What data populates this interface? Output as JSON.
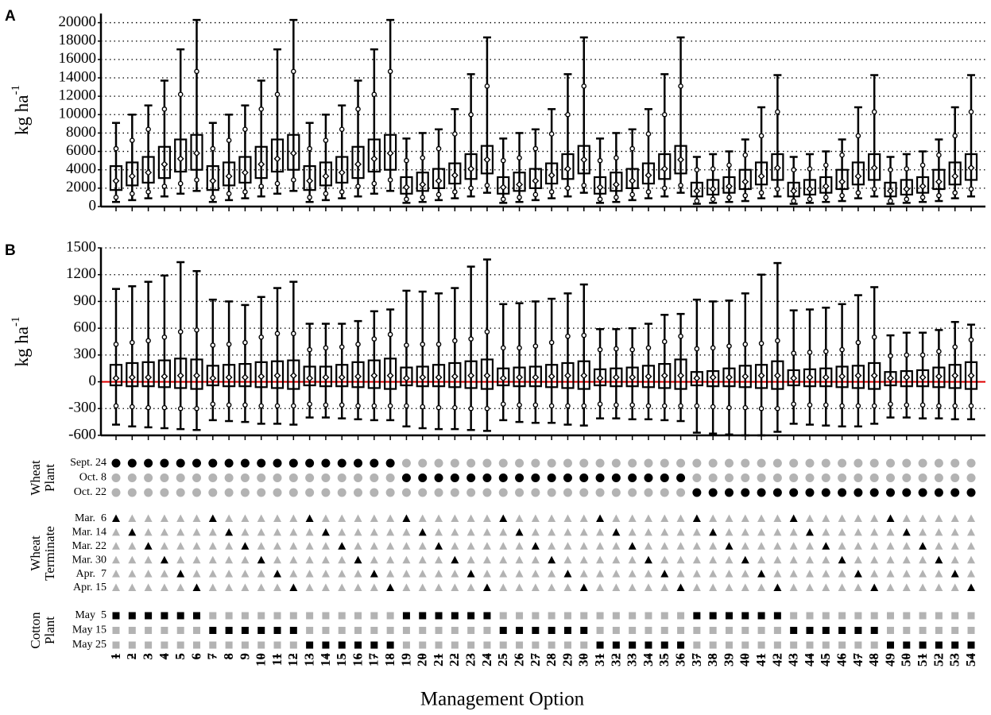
{
  "chart_data": [
    {
      "type": "box",
      "label": "A",
      "y_label": "kg ha",
      "y_label_sup": "-1",
      "ylim": [
        0,
        21000
      ],
      "yticks": [
        0,
        2000,
        4000,
        6000,
        8000,
        10000,
        12000,
        14000,
        16000,
        18000,
        20000
      ],
      "grid": true,
      "stats": {
        "min": [
          500,
          700,
          900,
          1100,
          1400,
          1700,
          500,
          700,
          900,
          1100,
          1400,
          1700,
          500,
          700,
          900,
          1100,
          1400,
          1700,
          400,
          500,
          700,
          900,
          1100,
          1500,
          400,
          500,
          700,
          900,
          1100,
          1500,
          400,
          500,
          700,
          900,
          1100,
          1500,
          300,
          400,
          500,
          600,
          900,
          1100,
          300,
          400,
          500,
          600,
          900,
          1100,
          300,
          400,
          500,
          600,
          900,
          1100
        ],
        "p_low": [
          1000,
          1400,
          1600,
          2200,
          2500,
          2900,
          1000,
          1400,
          1600,
          2200,
          2500,
          2900,
          1000,
          1400,
          1600,
          2200,
          2500,
          2900,
          800,
          1000,
          1300,
          1600,
          2000,
          2300,
          800,
          1000,
          1300,
          1600,
          2000,
          2300,
          800,
          1000,
          1300,
          1600,
          2000,
          2300,
          600,
          800,
          1000,
          1200,
          1500,
          1900,
          600,
          800,
          1000,
          1200,
          1500,
          1900,
          600,
          800,
          1000,
          1200,
          1500,
          1900
        ],
        "q1": [
          1800,
          2300,
          2600,
          3100,
          3800,
          4000,
          1800,
          2300,
          2600,
          3100,
          3800,
          4000,
          1800,
          2300,
          2600,
          3100,
          3800,
          4000,
          1400,
          1700,
          2000,
          2500,
          3000,
          3600,
          1400,
          1700,
          2000,
          2500,
          3000,
          3600,
          1400,
          1700,
          2000,
          2500,
          3000,
          3600,
          1100,
          1300,
          1500,
          1900,
          2400,
          2900,
          1100,
          1300,
          1500,
          1900,
          2400,
          2900,
          1100,
          1300,
          1500,
          1900,
          2400,
          2900
        ],
        "median": [
          2800,
          3300,
          3700,
          4600,
          5200,
          5800,
          2800,
          3300,
          3700,
          4600,
          5200,
          5800,
          2800,
          3300,
          3700,
          4600,
          5200,
          5800,
          2100,
          2400,
          2800,
          3400,
          4100,
          5100,
          2100,
          2400,
          2800,
          3400,
          4100,
          5100,
          2100,
          2400,
          2800,
          3400,
          4100,
          5100,
          1700,
          1900,
          2200,
          2700,
          3300,
          4200,
          1700,
          1900,
          2200,
          2700,
          3300,
          4200,
          1700,
          1900,
          2200,
          2700,
          3300,
          4200
        ],
        "q3": [
          4400,
          4800,
          5400,
          6500,
          7300,
          7800,
          4400,
          4800,
          5400,
          6500,
          7300,
          7800,
          4400,
          4800,
          5400,
          6500,
          7300,
          7800,
          3200,
          3700,
          4100,
          4700,
          5700,
          6600,
          3200,
          3700,
          4100,
          4700,
          5700,
          6600,
          3200,
          3700,
          4100,
          4700,
          5700,
          6600,
          2600,
          2900,
          3200,
          4000,
          4800,
          5700,
          2600,
          2900,
          3200,
          4000,
          4800,
          5700,
          2600,
          2900,
          3200,
          4000,
          4800,
          5700
        ],
        "p_high": [
          6300,
          7200,
          8400,
          10600,
          12200,
          14700,
          6300,
          7200,
          8400,
          10600,
          12200,
          14700,
          6300,
          7200,
          8400,
          10600,
          12200,
          14700,
          5000,
          5300,
          6300,
          7900,
          10000,
          13100,
          5000,
          5300,
          6300,
          7900,
          10000,
          13100,
          5000,
          5300,
          6300,
          7900,
          10000,
          13100,
          4000,
          4100,
          4500,
          5600,
          7700,
          10300,
          4000,
          4100,
          4500,
          5600,
          7700,
          10300,
          4000,
          4100,
          4500,
          5600,
          7700,
          10300
        ],
        "max": [
          9100,
          10000,
          11000,
          13700,
          17100,
          20300,
          9100,
          10000,
          11000,
          13700,
          17100,
          20300,
          9100,
          10000,
          11000,
          13700,
          17100,
          20300,
          7400,
          8000,
          8400,
          10600,
          14400,
          18400,
          7400,
          8000,
          8400,
          10600,
          14400,
          18400,
          7400,
          8000,
          8400,
          10600,
          14400,
          18400,
          5400,
          5700,
          6000,
          7300,
          10800,
          14300,
          5400,
          5700,
          6000,
          7300,
          10800,
          14300,
          5400,
          5700,
          6000,
          7300,
          10800,
          14300
        ]
      }
    },
    {
      "type": "box",
      "label": "B",
      "y_label": "kg ha",
      "y_label_sup": "-1",
      "ylim": [
        -600,
        1500
      ],
      "yticks": [
        -600,
        -300,
        0,
        300,
        600,
        900,
        1200,
        1500
      ],
      "grid": true,
      "zero_line_color": "#e00000",
      "stats": {
        "min": [
          -480,
          -500,
          -510,
          -520,
          -530,
          -540,
          -430,
          -440,
          -450,
          -470,
          -470,
          -480,
          -400,
          -400,
          -410,
          -420,
          -430,
          -430,
          -500,
          -520,
          -530,
          -530,
          -540,
          -550,
          -430,
          -450,
          -460,
          -460,
          -480,
          -490,
          -410,
          -410,
          -420,
          -420,
          -430,
          -440,
          -570,
          -580,
          -590,
          -600,
          -600,
          -560,
          -470,
          -480,
          -490,
          -500,
          -500,
          -470,
          -400,
          -400,
          -410,
          -410,
          -420,
          -420
        ],
        "p_low": [
          -270,
          -280,
          -290,
          -290,
          -300,
          -300,
          -250,
          -260,
          -260,
          -270,
          -270,
          -270,
          -250,
          -260,
          -260,
          -270,
          -270,
          -270,
          -270,
          -280,
          -290,
          -290,
          -300,
          -300,
          -250,
          -260,
          -260,
          -270,
          -270,
          -270,
          -250,
          -260,
          -260,
          -270,
          -270,
          -270,
          -270,
          -280,
          -290,
          -290,
          -300,
          -300,
          -250,
          -260,
          -260,
          -270,
          -270,
          -270,
          -250,
          -260,
          -260,
          -270,
          -270,
          -270
        ],
        "q1": [
          -40,
          -50,
          -50,
          -60,
          -70,
          -80,
          -40,
          -50,
          -50,
          -60,
          -70,
          -80,
          -40,
          -50,
          -50,
          -60,
          -70,
          -80,
          -40,
          -50,
          -50,
          -60,
          -70,
          -80,
          -40,
          -50,
          -50,
          -60,
          -70,
          -80,
          -40,
          -50,
          -50,
          -60,
          -70,
          -80,
          -40,
          -50,
          -50,
          -60,
          -70,
          -80,
          -40,
          -50,
          -50,
          -60,
          -70,
          -80,
          -40,
          -50,
          -50,
          -60,
          -70,
          -80
        ],
        "median": [
          40,
          50,
          50,
          60,
          70,
          70,
          40,
          50,
          50,
          60,
          70,
          70,
          40,
          50,
          50,
          60,
          70,
          70,
          40,
          50,
          50,
          60,
          70,
          70,
          40,
          50,
          50,
          60,
          70,
          70,
          40,
          50,
          50,
          60,
          70,
          70,
          40,
          50,
          50,
          60,
          70,
          70,
          40,
          50,
          50,
          60,
          70,
          70,
          40,
          50,
          50,
          60,
          70,
          70
        ],
        "q3": [
          190,
          210,
          220,
          240,
          260,
          250,
          180,
          190,
          200,
          220,
          230,
          240,
          170,
          170,
          190,
          220,
          240,
          260,
          160,
          170,
          190,
          210,
          230,
          250,
          150,
          160,
          170,
          190,
          210,
          230,
          140,
          150,
          160,
          180,
          200,
          250,
          110,
          120,
          150,
          180,
          190,
          230,
          130,
          140,
          150,
          170,
          180,
          210,
          110,
          120,
          130,
          160,
          190,
          220
        ],
        "p_high": [
          420,
          440,
          460,
          500,
          560,
          580,
          410,
          420,
          440,
          500,
          540,
          540,
          360,
          380,
          390,
          420,
          480,
          530,
          410,
          420,
          420,
          460,
          480,
          560,
          380,
          380,
          400,
          440,
          510,
          520,
          360,
          370,
          360,
          380,
          450,
          510,
          370,
          380,
          400,
          420,
          430,
          460,
          320,
          330,
          340,
          360,
          440,
          500,
          290,
          300,
          300,
          340,
          390,
          470
        ],
        "max": [
          1040,
          1070,
          1120,
          1190,
          1340,
          1240,
          920,
          900,
          860,
          950,
          1050,
          1120,
          650,
          650,
          650,
          680,
          790,
          810,
          1020,
          1010,
          990,
          1050,
          1290,
          1370,
          870,
          880,
          900,
          930,
          990,
          1090,
          590,
          590,
          600,
          650,
          750,
          760,
          920,
          900,
          910,
          990,
          1200,
          1330,
          800,
          810,
          830,
          870,
          970,
          1060,
          520,
          550,
          550,
          580,
          670,
          640
        ]
      }
    }
  ],
  "x_axis": {
    "label": "Management Option",
    "categories": [
      "1",
      "2",
      "3",
      "4",
      "5",
      "6",
      "7",
      "8",
      "9",
      "10",
      "11",
      "12",
      "13",
      "14",
      "15",
      "16",
      "17",
      "18",
      "19",
      "20",
      "21",
      "22",
      "23",
      "24",
      "25",
      "26",
      "27",
      "28",
      "29",
      "30",
      "31",
      "32",
      "33",
      "34",
      "35",
      "36",
      "37",
      "38",
      "39",
      "40",
      "41",
      "42",
      "43",
      "44",
      "45",
      "46",
      "47",
      "48",
      "49",
      "50",
      "51",
      "52",
      "53",
      "54"
    ]
  },
  "treatment_colors": {
    "on": "#000000",
    "off": "#b3b3b3"
  },
  "treatments": [
    {
      "title_lines": [
        "Wheat",
        "Plant"
      ],
      "shape": "circle",
      "levels": [
        "Sept. 24",
        "Oct. 8",
        "Oct. 22"
      ],
      "selected": [
        0,
        0,
        0,
        0,
        0,
        0,
        0,
        0,
        0,
        0,
        0,
        0,
        0,
        0,
        0,
        0,
        0,
        0,
        1,
        1,
        1,
        1,
        1,
        1,
        1,
        1,
        1,
        1,
        1,
        1,
        1,
        1,
        1,
        1,
        1,
        1,
        2,
        2,
        2,
        2,
        2,
        2,
        2,
        2,
        2,
        2,
        2,
        2,
        2,
        2,
        2,
        2,
        2,
        2
      ]
    },
    {
      "title_lines": [
        "Wheat",
        "Terminate"
      ],
      "shape": "triangle",
      "levels": [
        "Mar.  6",
        "Mar. 14",
        "Mar. 22",
        "Mar. 30",
        "Apr.  7",
        "Apr. 15"
      ],
      "selected": [
        0,
        1,
        2,
        3,
        4,
        5,
        0,
        1,
        2,
        3,
        4,
        5,
        0,
        1,
        2,
        3,
        4,
        5,
        0,
        1,
        2,
        3,
        4,
        5,
        0,
        1,
        2,
        3,
        4,
        5,
        0,
        1,
        2,
        3,
        4,
        5,
        0,
        1,
        2,
        3,
        4,
        5,
        0,
        1,
        2,
        3,
        4,
        5,
        0,
        1,
        2,
        3,
        4,
        5
      ]
    },
    {
      "title_lines": [
        "Cotton",
        "Plant"
      ],
      "shape": "square",
      "levels": [
        "May  5",
        "May 15",
        "May 25"
      ],
      "selected": [
        0,
        0,
        0,
        0,
        0,
        0,
        1,
        1,
        1,
        1,
        1,
        1,
        2,
        2,
        2,
        2,
        2,
        2,
        0,
        0,
        0,
        0,
        0,
        0,
        1,
        1,
        1,
        1,
        1,
        1,
        2,
        2,
        2,
        2,
        2,
        2,
        0,
        0,
        0,
        0,
        0,
        0,
        1,
        1,
        1,
        1,
        1,
        1,
        2,
        2,
        2,
        2,
        2,
        2
      ]
    }
  ]
}
